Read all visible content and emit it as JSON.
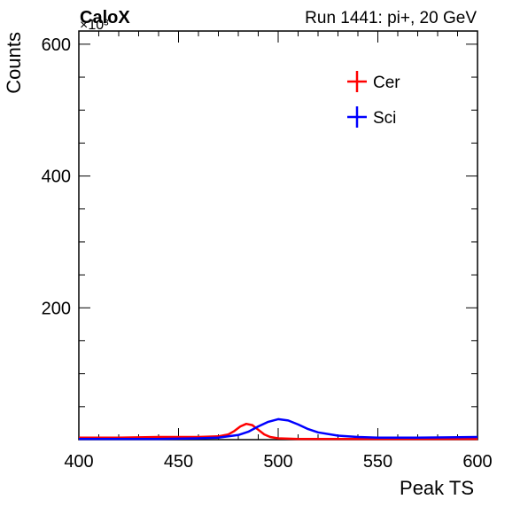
{
  "header": {
    "left_label": "CaloX",
    "right_label": "Run 1441: pi+, 20 GeV",
    "exponent_label": "×10³"
  },
  "chart_data": {
    "type": "line",
    "title": "",
    "xlabel": "Peak TS",
    "ylabel": "Counts",
    "xlim": [
      400,
      600
    ],
    "ylim": [
      0,
      620
    ],
    "y_multiplier": "×10³",
    "xticks": [
      400,
      450,
      500,
      550,
      600
    ],
    "yticks": [
      200,
      400,
      600
    ],
    "grid": false,
    "legend_position": "top-right",
    "series": [
      {
        "name": "Cer",
        "color": "#ff0000",
        "x": [
          400,
          420,
          440,
          460,
          470,
          475,
          478,
          481,
          484,
          487,
          490,
          493,
          496,
          500,
          510,
          530,
          560,
          600
        ],
        "y": [
          3,
          3,
          4,
          4,
          5,
          8,
          13,
          20,
          24,
          22,
          15,
          8,
          4,
          2,
          1,
          1,
          1,
          1
        ]
      },
      {
        "name": "Sci",
        "color": "#0000ff",
        "x": [
          400,
          420,
          440,
          460,
          470,
          480,
          485,
          490,
          495,
          500,
          505,
          510,
          515,
          520,
          530,
          540,
          550,
          570,
          600
        ],
        "y": [
          1,
          1,
          1,
          2,
          3,
          7,
          12,
          20,
          27,
          31,
          29,
          23,
          16,
          11,
          6,
          4,
          3,
          3,
          4
        ]
      }
    ]
  }
}
